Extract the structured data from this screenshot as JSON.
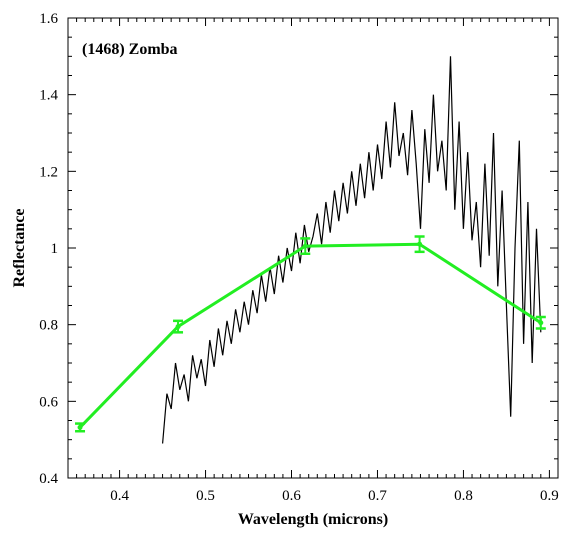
{
  "chart_data": {
    "type": "line",
    "title": "(1468) Zomba",
    "xlabel": "Wavelength (microns)",
    "ylabel": "Reflectance",
    "xlim": [
      0.34,
      0.91
    ],
    "ylim": [
      0.4,
      1.6
    ],
    "x_ticks": [
      0.4,
      0.5,
      0.6,
      0.7,
      0.8,
      0.9
    ],
    "x_tick_labels": [
      "0.4",
      "0.5",
      "0.6",
      "0.7",
      "0.8",
      "0.9"
    ],
    "y_ticks": [
      0.4,
      0.6,
      0.8,
      1.0,
      1.2,
      1.4,
      1.6
    ],
    "y_tick_labels": [
      "0.4",
      "0.6",
      "0.8",
      "1",
      "1.2",
      "1.4",
      "1.6"
    ],
    "grid": false,
    "series": [
      {
        "color": "#000000",
        "style": "noisy-spectrum",
        "x": [
          0.45,
          0.455,
          0.46,
          0.465,
          0.47,
          0.475,
          0.48,
          0.485,
          0.49,
          0.495,
          0.5,
          0.505,
          0.51,
          0.515,
          0.52,
          0.525,
          0.53,
          0.535,
          0.54,
          0.545,
          0.55,
          0.555,
          0.56,
          0.565,
          0.57,
          0.575,
          0.58,
          0.585,
          0.59,
          0.595,
          0.6,
          0.605,
          0.61,
          0.615,
          0.62,
          0.625,
          0.63,
          0.635,
          0.64,
          0.645,
          0.65,
          0.655,
          0.66,
          0.665,
          0.67,
          0.675,
          0.68,
          0.685,
          0.69,
          0.695,
          0.7,
          0.705,
          0.71,
          0.715,
          0.72,
          0.725,
          0.73,
          0.735,
          0.74,
          0.745,
          0.75,
          0.755,
          0.76,
          0.765,
          0.77,
          0.775,
          0.78,
          0.785,
          0.79,
          0.795,
          0.8,
          0.805,
          0.81,
          0.815,
          0.82,
          0.825,
          0.83,
          0.835,
          0.84,
          0.845,
          0.85,
          0.855,
          0.86,
          0.865,
          0.87,
          0.875,
          0.88,
          0.885,
          0.89
        ],
        "values": [
          0.49,
          0.62,
          0.58,
          0.7,
          0.63,
          0.67,
          0.6,
          0.72,
          0.66,
          0.71,
          0.64,
          0.76,
          0.69,
          0.79,
          0.72,
          0.81,
          0.75,
          0.84,
          0.78,
          0.86,
          0.8,
          0.89,
          0.83,
          0.93,
          0.86,
          0.95,
          0.88,
          0.98,
          0.91,
          1.0,
          0.94,
          1.04,
          0.96,
          1.06,
          0.99,
          1.03,
          1.09,
          1.01,
          1.12,
          1.04,
          1.15,
          1.07,
          1.17,
          1.09,
          1.2,
          1.11,
          1.22,
          1.13,
          1.25,
          1.15,
          1.27,
          1.18,
          1.33,
          1.21,
          1.38,
          1.24,
          1.3,
          1.19,
          1.36,
          1.22,
          1.05,
          1.31,
          1.17,
          1.4,
          1.2,
          1.28,
          1.15,
          1.5,
          1.1,
          1.33,
          1.05,
          1.25,
          1.02,
          1.12,
          0.95,
          1.22,
          0.98,
          1.3,
          0.9,
          1.15,
          0.85,
          0.56,
          1.0,
          1.28,
          0.75,
          1.12,
          0.7,
          1.05,
          0.78
        ]
      },
      {
        "color": "#22ee22",
        "style": "error-bar-line",
        "x": [
          0.354,
          0.468,
          0.616,
          0.749,
          0.89
        ],
        "values": [
          0.532,
          0.795,
          1.005,
          1.01,
          0.805
        ],
        "errors": [
          0.01,
          0.015,
          0.02,
          0.02,
          0.015
        ]
      }
    ]
  }
}
